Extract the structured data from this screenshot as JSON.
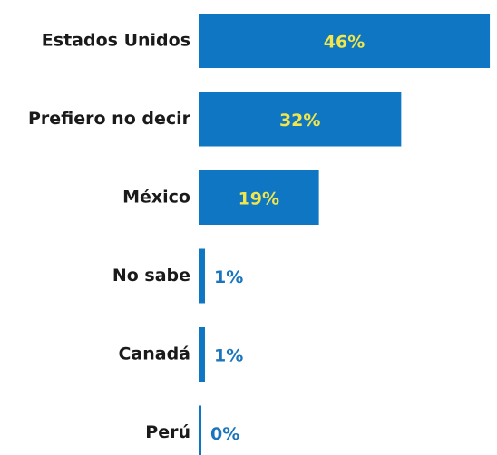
{
  "chart_data": {
    "type": "bar",
    "orientation": "horizontal",
    "categories": [
      "Estados Unidos",
      "Prefiero no decir",
      "México",
      "No sabe",
      "Canadá",
      "Perú"
    ],
    "values": [
      46,
      32,
      19,
      1,
      1,
      0
    ],
    "value_labels": [
      "46%",
      "32%",
      "19%",
      "1%",
      "1%",
      "0%"
    ],
    "color": "#0e76c2",
    "label_inside_color": "#f2e64a",
    "label_outside_color": "#1a75bd"
  }
}
